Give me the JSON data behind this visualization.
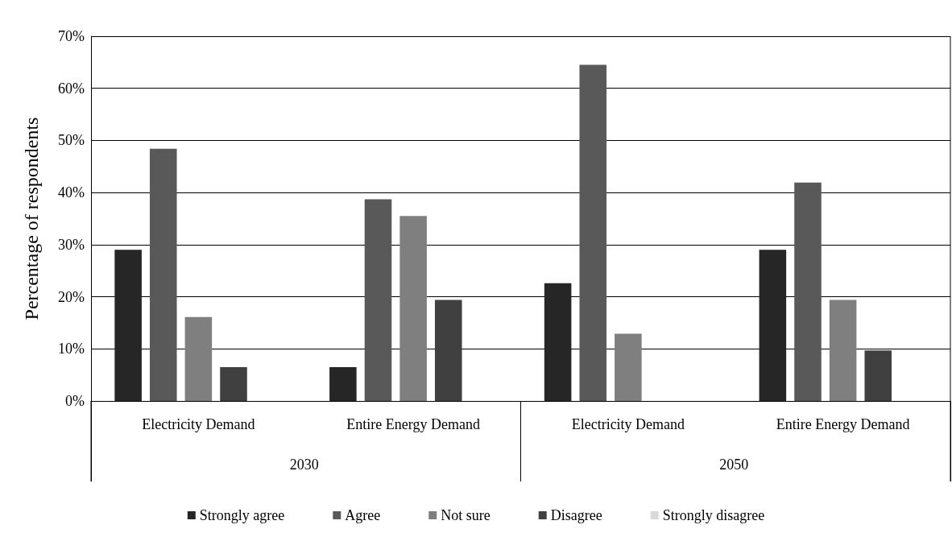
{
  "chart_data": {
    "type": "bar",
    "ylabel": "Percentage of respondents",
    "categories": [
      "Electricity Demand",
      "Entire Energy Demand",
      "Electricity Demand",
      "Entire Energy Demand"
    ],
    "series": [
      {
        "name": "Strongly agree",
        "color": "#262626",
        "values": [
          29.0,
          6.5,
          22.6,
          29.0
        ]
      },
      {
        "name": "Agree",
        "color": "#595959",
        "values": [
          48.4,
          38.7,
          64.5,
          41.9
        ]
      },
      {
        "name": "Not sure",
        "color": "#7f7f7f",
        "values": [
          16.1,
          35.5,
          12.9,
          19.4
        ]
      },
      {
        "name": "Disagree",
        "color": "#404040",
        "values": [
          6.5,
          19.4,
          0,
          9.7
        ]
      },
      {
        "name": "Strongly disagree",
        "color": "#d9d9d9",
        "values": [
          0,
          0,
          0,
          0
        ]
      }
    ],
    "annotations": [
      "2030",
      "2050"
    ],
    "ylim": [
      0,
      70
    ],
    "yticks": [
      {
        "value": 0,
        "label": "0%"
      },
      {
        "value": 10,
        "label": "10%"
      },
      {
        "value": 20,
        "label": "20%"
      },
      {
        "value": 30,
        "label": "30%"
      },
      {
        "value": 40,
        "label": "40%"
      },
      {
        "value": 50,
        "label": "50%"
      },
      {
        "value": 60,
        "label": "60%"
      },
      {
        "value": 70,
        "label": "70%"
      }
    ],
    "grid": "y",
    "legend": "bottom"
  }
}
